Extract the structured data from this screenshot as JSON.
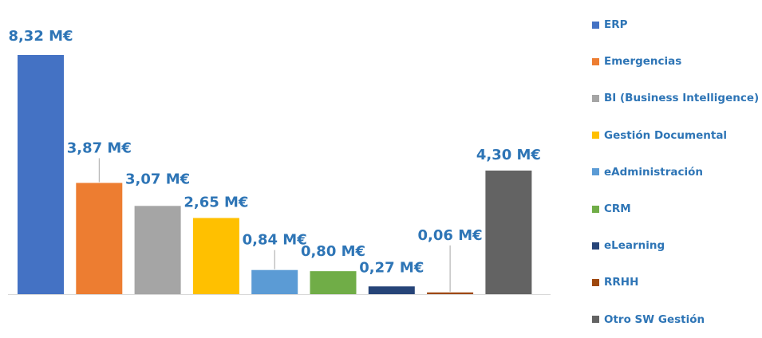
{
  "chart_data": {
    "type": "bar",
    "categories": [
      "ERP",
      "Emergencias",
      "BI (Business Intelligence)",
      "Gestión Documental",
      "eAdministración",
      "CRM",
      "eLearning",
      "RRHH",
      "Otro SW Gestión"
    ],
    "values": [
      8.32,
      3.87,
      3.07,
      2.65,
      0.84,
      0.8,
      0.27,
      0.06,
      4.3
    ],
    "data_labels": [
      "8,32 M€",
      "3,87 M€",
      "3,07 M€",
      "2,65 M€",
      "0,84 M€",
      "0,80 M€",
      "0,27 M€",
      "0,06 M€",
      "4,30 M€"
    ],
    "colors": [
      "#4472c4",
      "#ed7d31",
      "#a5a5a5",
      "#ffc000",
      "#5b9bd5",
      "#70ad47",
      "#264478",
      "#9e480e",
      "#636363"
    ],
    "label_color": "#2e75b6",
    "ylim": [
      0,
      8.32
    ],
    "grid": false,
    "legend_position": "right",
    "xlabel": "",
    "ylabel": "",
    "title": ""
  }
}
